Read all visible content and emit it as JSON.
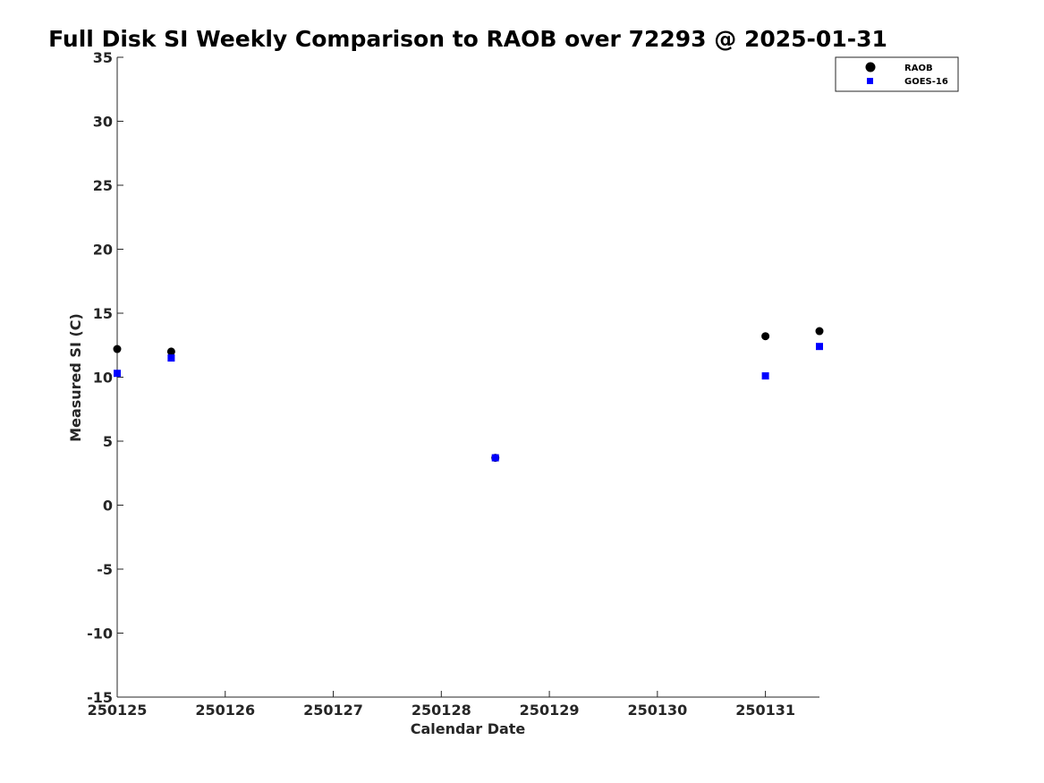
{
  "chart_data": {
    "type": "scatter",
    "title": "Full Disk SI Weekly Comparison to RAOB over 72293 @ 2025-01-31",
    "xlabel": "Calendar Date",
    "ylabel": "Measured SI (C)",
    "xlim": [
      250125,
      250131.5
    ],
    "ylim": [
      -15,
      35
    ],
    "x_ticks": [
      250125,
      250126,
      250127,
      250128,
      250129,
      250130,
      250131
    ],
    "x_tick_labels": [
      "250125",
      "250126",
      "250127",
      "250128",
      "250129",
      "250130",
      "250131"
    ],
    "y_ticks": [
      -15,
      -10,
      -5,
      0,
      5,
      10,
      15,
      20,
      25,
      30,
      35
    ],
    "y_tick_labels": [
      "-15",
      "-10",
      "-5",
      "0",
      "5",
      "10",
      "15",
      "20",
      "25",
      "30",
      "35"
    ],
    "grid": false,
    "legend_position": "top-right",
    "series": [
      {
        "name": "RAOB",
        "marker": "circle",
        "color": "#000000",
        "x": [
          250125,
          250125.5,
          250128.5,
          250131,
          250131.5
        ],
        "y": [
          12.2,
          12.0,
          3.7,
          13.2,
          13.6
        ]
      },
      {
        "name": "GOES-16",
        "marker": "square",
        "color": "#0000ff",
        "x": [
          250125,
          250125.5,
          250128.5,
          250131,
          250131.5
        ],
        "y": [
          10.3,
          11.5,
          3.7,
          10.1,
          12.4
        ]
      }
    ]
  }
}
